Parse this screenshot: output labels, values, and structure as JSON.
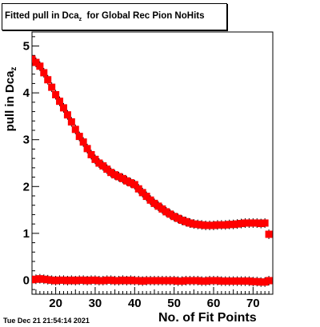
{
  "title": {
    "main": "Fitted pull in Dca",
    "sub": "z",
    "rest": "  for Global Rec Pion NoHits"
  },
  "footer_timestamp": "Tue Dec 21 21:54:14 2021",
  "colors": {
    "marker": "#ff0000",
    "axis": "#000000"
  },
  "chart_data": {
    "type": "scatter",
    "xlabel": "No. of Fit Points",
    "ylabel_main": "pull in Dca",
    "ylabel_sub": "z",
    "xlim": [
      14,
      75
    ],
    "ylim": [
      -0.3,
      5.3
    ],
    "x_ticks": [
      20,
      30,
      40,
      50,
      60,
      70
    ],
    "y_ticks": [
      0,
      1,
      2,
      3,
      4,
      5
    ],
    "marker": "square",
    "grid": false,
    "series": [
      {
        "x": [
          14,
          15,
          16,
          17,
          18,
          19,
          20,
          21,
          22,
          23,
          24,
          25,
          26,
          27,
          28,
          29,
          30,
          31,
          32,
          33,
          34,
          35,
          36,
          37,
          38,
          39,
          40,
          41,
          42,
          43,
          44,
          45,
          46,
          47,
          48,
          49,
          50,
          51,
          52,
          53,
          54,
          55,
          56,
          57,
          58,
          59,
          60,
          61,
          62,
          63,
          64,
          65,
          66,
          67,
          68,
          69,
          70,
          71,
          72,
          73,
          74
        ],
        "y": [
          4.72,
          4.65,
          4.57,
          4.43,
          4.28,
          4.12,
          3.96,
          3.82,
          3.68,
          3.53,
          3.38,
          3.22,
          3.07,
          2.95,
          2.81,
          2.68,
          2.58,
          2.5,
          2.44,
          2.37,
          2.3,
          2.25,
          2.21,
          2.17,
          2.12,
          2.08,
          2.04,
          1.95,
          1.87,
          1.79,
          1.71,
          1.64,
          1.58,
          1.52,
          1.46,
          1.41,
          1.36,
          1.32,
          1.28,
          1.25,
          1.22,
          1.2,
          1.19,
          1.18,
          1.17,
          1.17,
          1.17,
          1.18,
          1.18,
          1.18,
          1.19,
          1.19,
          1.2,
          1.21,
          1.22,
          1.22,
          1.22,
          1.22,
          1.21,
          1.22,
          0.98
        ]
      },
      {
        "x": [
          14,
          15,
          16,
          17,
          18,
          19,
          20,
          21,
          22,
          23,
          24,
          25,
          26,
          27,
          28,
          29,
          30,
          31,
          32,
          33,
          34,
          35,
          36,
          37,
          38,
          39,
          40,
          41,
          42,
          43,
          44,
          45,
          46,
          47,
          48,
          49,
          50,
          51,
          52,
          53,
          54,
          55,
          56,
          57,
          58,
          59,
          60,
          61,
          62,
          63,
          64,
          65,
          66,
          67,
          68,
          69,
          70,
          71,
          72,
          73,
          74
        ],
        "y": [
          0.01,
          0.02,
          0.03,
          0.02,
          0.01,
          0.0,
          -0.01,
          0.0,
          0.0,
          -0.01,
          0.0,
          -0.01,
          0.0,
          0.0,
          -0.01,
          0.0,
          0.0,
          -0.01,
          -0.01,
          0.0,
          0.0,
          -0.01,
          -0.01,
          0.0,
          -0.01,
          0.0,
          -0.01,
          -0.01,
          -0.02,
          -0.01,
          -0.01,
          -0.01,
          -0.01,
          -0.01,
          -0.01,
          -0.01,
          -0.01,
          -0.02,
          -0.02,
          -0.01,
          -0.01,
          -0.01,
          -0.01,
          -0.02,
          -0.02,
          -0.01,
          -0.01,
          -0.01,
          -0.02,
          -0.02,
          -0.02,
          -0.02,
          -0.02,
          -0.02,
          -0.02,
          -0.02,
          -0.03,
          -0.03,
          -0.04,
          -0.04,
          -0.01
        ]
      }
    ]
  }
}
